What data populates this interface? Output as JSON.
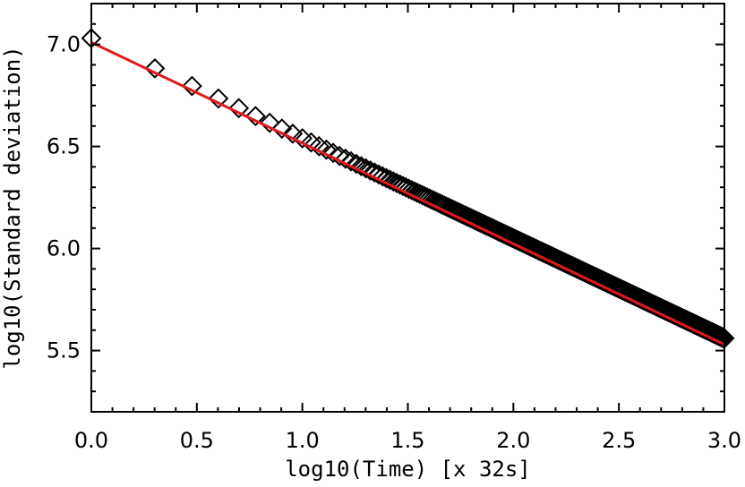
{
  "chart_data": {
    "type": "scatter",
    "title": "",
    "xlabel": "log10(Time) [x 32s]",
    "ylabel": "log10(Standard deviation)",
    "xlim": [
      0.0,
      3.0
    ],
    "ylim": [
      5.2,
      7.2
    ],
    "xticks": [
      "0.0",
      "0.5",
      "1.0",
      "1.5",
      "2.0",
      "2.5",
      "3.0"
    ],
    "yticks": [
      "5.5",
      "6.0",
      "6.5",
      "7.0"
    ],
    "grid": false,
    "legend": "none",
    "marker": "diamond-open",
    "colors": {
      "points": "#000000",
      "fit_line": "#e0191f",
      "frame": "#000000"
    },
    "series": [
      {
        "kind": "points",
        "points_rule": "log10 of integer time lags 1..1000 (shown as x in log10 units)",
        "n_points": 1000,
        "y_at_x0": 7.03,
        "slope": -0.49
      },
      {
        "kind": "fit_line",
        "x": [
          0.0,
          3.0
        ],
        "y": [
          7.01,
          5.53
        ]
      }
    ]
  }
}
